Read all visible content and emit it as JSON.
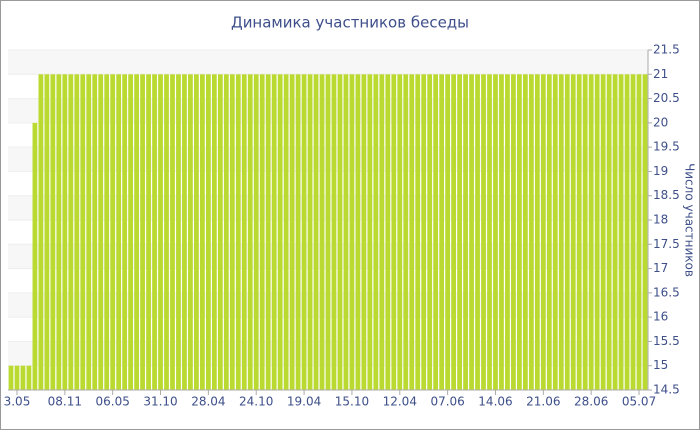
{
  "chart_data": {
    "type": "bar",
    "title": "Динамика участников беседы",
    "y_label": "Число участников",
    "categories": [
      null,
      "3.05",
      null,
      null,
      null,
      null,
      null,
      null,
      null,
      "08.11",
      null,
      null,
      null,
      null,
      null,
      null,
      null,
      "06.05",
      null,
      null,
      null,
      null,
      null,
      null,
      null,
      "31.10",
      null,
      null,
      null,
      null,
      null,
      null,
      null,
      "28.04",
      null,
      null,
      null,
      null,
      null,
      null,
      null,
      "24.10",
      null,
      null,
      null,
      null,
      null,
      null,
      null,
      "19.04",
      null,
      null,
      null,
      null,
      null,
      null,
      null,
      "15.10",
      null,
      null,
      null,
      null,
      null,
      null,
      null,
      "12.04",
      null,
      null,
      null,
      null,
      null,
      null,
      null,
      "07.06",
      null,
      null,
      null,
      null,
      null,
      null,
      null,
      "14.06",
      null,
      null,
      null,
      null,
      null,
      null,
      null,
      "21.06",
      null,
      null,
      null,
      null,
      null,
      null,
      null,
      "28.06",
      null,
      null,
      null,
      null,
      null,
      null,
      null,
      "05.07",
      null
    ],
    "values": [
      15,
      15,
      15,
      15,
      20,
      21,
      21,
      21,
      21,
      21,
      21,
      21,
      21,
      21,
      21,
      21,
      21,
      21,
      21,
      21,
      21,
      21,
      21,
      21,
      21,
      21,
      21,
      21,
      21,
      21,
      21,
      21,
      21,
      21,
      21,
      21,
      21,
      21,
      21,
      21,
      21,
      21,
      21,
      21,
      21,
      21,
      21,
      21,
      21,
      21,
      21,
      21,
      21,
      21,
      21,
      21,
      21,
      21,
      21,
      21,
      21,
      21,
      21,
      21,
      21,
      21,
      21,
      21,
      21,
      21,
      21,
      21,
      21,
      21,
      21,
      21,
      21,
      21,
      21,
      21,
      21,
      21,
      21,
      21,
      21,
      21,
      21,
      21,
      21,
      21,
      21,
      21,
      21,
      21,
      21,
      21,
      21,
      21,
      21,
      21,
      21,
      21,
      21,
      21,
      21,
      21,
      21
    ],
    "color": "#bada32",
    "ylim": [
      14.5,
      21.5
    ],
    "yticks": [
      14.5,
      15,
      15.5,
      16,
      16.5,
      17,
      17.5,
      18,
      18.5,
      19,
      19.5,
      20,
      20.5,
      21,
      21.5
    ],
    "grid": true,
    "y_axis_side": "right"
  }
}
